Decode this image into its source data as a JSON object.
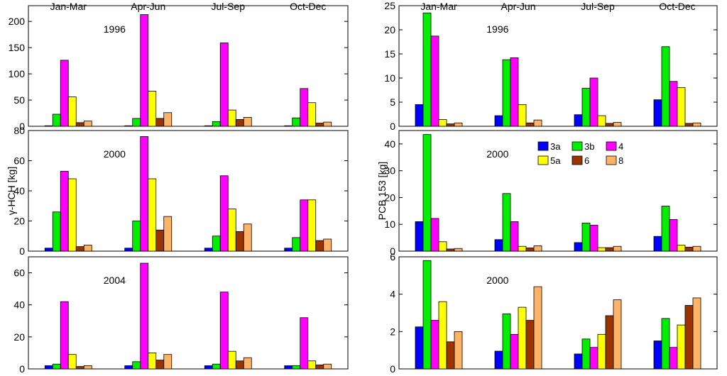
{
  "colors": {
    "3a": "#0000ff",
    "3b": "#00ee00",
    "4": "#ff00ff",
    "5a": "#ffff00",
    "6": "#993300",
    "8": "#ffb366"
  },
  "series_names": [
    "3a",
    "3b",
    "4",
    "5a",
    "6",
    "8"
  ],
  "quarters": [
    "Jan-Mar",
    "Apr-Jun",
    "Jul-Sep",
    "Oct-Dec"
  ],
  "left_ylabel": "γ-HCH [kg]",
  "right_ylabel": "PCB 153 [kg]",
  "chart_data": [
    {
      "type": "bar",
      "column": "left",
      "row": 0,
      "year_label": "1996",
      "categories": [
        "Jan-Mar",
        "Apr-Jun",
        "Jul-Sep",
        "Oct-Dec"
      ],
      "ylim": [
        0,
        230
      ],
      "yticks": [
        0,
        50,
        100,
        150,
        200
      ],
      "series": [
        {
          "name": "3a",
          "values": [
            1,
            1,
            1,
            1
          ]
        },
        {
          "name": "3b",
          "values": [
            23,
            15,
            9,
            16
          ]
        },
        {
          "name": "4",
          "values": [
            126,
            213,
            159,
            72
          ]
        },
        {
          "name": "5a",
          "values": [
            56,
            67,
            31,
            45
          ]
        },
        {
          "name": "6",
          "values": [
            7,
            15,
            13,
            6
          ]
        },
        {
          "name": "8",
          "values": [
            10,
            26,
            17,
            8
          ]
        }
      ]
    },
    {
      "type": "bar",
      "column": "left",
      "row": 1,
      "year_label": "2000",
      "categories": [
        "Jan-Mar",
        "Apr-Jun",
        "Jul-Sep",
        "Oct-Dec"
      ],
      "ylim": [
        0,
        80
      ],
      "yticks": [
        0,
        20,
        40,
        60,
        80
      ],
      "series": [
        {
          "name": "3a",
          "values": [
            2,
            2,
            2,
            2
          ]
        },
        {
          "name": "3b",
          "values": [
            26,
            20,
            10,
            9
          ]
        },
        {
          "name": "4",
          "values": [
            53,
            76,
            50,
            34
          ]
        },
        {
          "name": "5a",
          "values": [
            48,
            48,
            28,
            34
          ]
        },
        {
          "name": "6",
          "values": [
            3,
            14,
            13,
            7
          ]
        },
        {
          "name": "8",
          "values": [
            4,
            23,
            18,
            8
          ]
        }
      ]
    },
    {
      "type": "bar",
      "column": "left",
      "row": 2,
      "year_label": "2004",
      "categories": [
        "Jan-Mar",
        "Apr-Jun",
        "Jul-Sep",
        "Oct-Dec"
      ],
      "ylim": [
        0,
        70
      ],
      "yticks": [
        0,
        20,
        40,
        60
      ],
      "series": [
        {
          "name": "3a",
          "values": [
            2,
            2,
            2,
            2
          ]
        },
        {
          "name": "3b",
          "values": [
            3,
            4.5,
            3,
            2
          ]
        },
        {
          "name": "4",
          "values": [
            42,
            66,
            48,
            32
          ]
        },
        {
          "name": "5a",
          "values": [
            9,
            10,
            11,
            5
          ]
        },
        {
          "name": "6",
          "values": [
            1.5,
            5.5,
            5,
            2.5
          ]
        },
        {
          "name": "8",
          "values": [
            2,
            9,
            7,
            3
          ]
        }
      ]
    },
    {
      "type": "bar",
      "column": "right",
      "row": 0,
      "year_label": "1996",
      "categories": [
        "Jan-Mar",
        "Apr-Jun",
        "Jul-Sep",
        "Oct-Dec"
      ],
      "ylim": [
        0,
        25
      ],
      "yticks": [
        0,
        5,
        10,
        15,
        20,
        25
      ],
      "series": [
        {
          "name": "3a",
          "values": [
            4.5,
            2.2,
            2.4,
            5.5
          ]
        },
        {
          "name": "3b",
          "values": [
            23.5,
            13.8,
            7.9,
            16.5
          ]
        },
        {
          "name": "4",
          "values": [
            18.7,
            14.2,
            10,
            9.3
          ]
        },
        {
          "name": "5a",
          "values": [
            1.4,
            4.5,
            2.2,
            8
          ]
        },
        {
          "name": "6",
          "values": [
            0.5,
            0.7,
            0.6,
            0.6
          ]
        },
        {
          "name": "8",
          "values": [
            0.7,
            1.3,
            0.8,
            0.7
          ]
        }
      ]
    },
    {
      "type": "bar",
      "column": "right",
      "row": 1,
      "year_label": "2000",
      "categories": [
        "Jan-Mar",
        "Apr-Jun",
        "Jul-Sep",
        "Oct-Dec"
      ],
      "ylim": [
        0,
        45
      ],
      "yticks": [
        0,
        10,
        20,
        30,
        40
      ],
      "legend": true,
      "series": [
        {
          "name": "3a",
          "values": [
            11,
            4.3,
            3.2,
            5.5
          ]
        },
        {
          "name": "3b",
          "values": [
            43.5,
            21.5,
            10.5,
            16.8
          ]
        },
        {
          "name": "4",
          "values": [
            12.2,
            11,
            9.7,
            11.8
          ]
        },
        {
          "name": "5a",
          "values": [
            3.5,
            1.8,
            1.3,
            2.2
          ]
        },
        {
          "name": "6",
          "values": [
            0.8,
            1.2,
            1.3,
            1.5
          ]
        },
        {
          "name": "8",
          "values": [
            1,
            2,
            1.8,
            1.8
          ]
        }
      ]
    },
    {
      "type": "bar",
      "column": "right",
      "row": 2,
      "year_label": "2000",
      "categories": [
        "Jan-Mar",
        "Apr-Jun",
        "Jul-Sep",
        "Oct-Dec"
      ],
      "ylim": [
        0,
        6
      ],
      "yticks": [
        0,
        2,
        4,
        6
      ],
      "series": [
        {
          "name": "3a",
          "values": [
            2.25,
            0.95,
            0.8,
            1.5
          ]
        },
        {
          "name": "3b",
          "values": [
            5.8,
            2.95,
            1.6,
            2.7
          ]
        },
        {
          "name": "4",
          "values": [
            2.6,
            1.85,
            1.15,
            1.15
          ]
        },
        {
          "name": "5a",
          "values": [
            3.6,
            3.3,
            1.85,
            2.35
          ]
        },
        {
          "name": "6",
          "values": [
            1.45,
            2.6,
            2.85,
            3.4
          ]
        },
        {
          "name": "8",
          "values": [
            2,
            4.4,
            3.7,
            3.8
          ]
        }
      ]
    }
  ]
}
